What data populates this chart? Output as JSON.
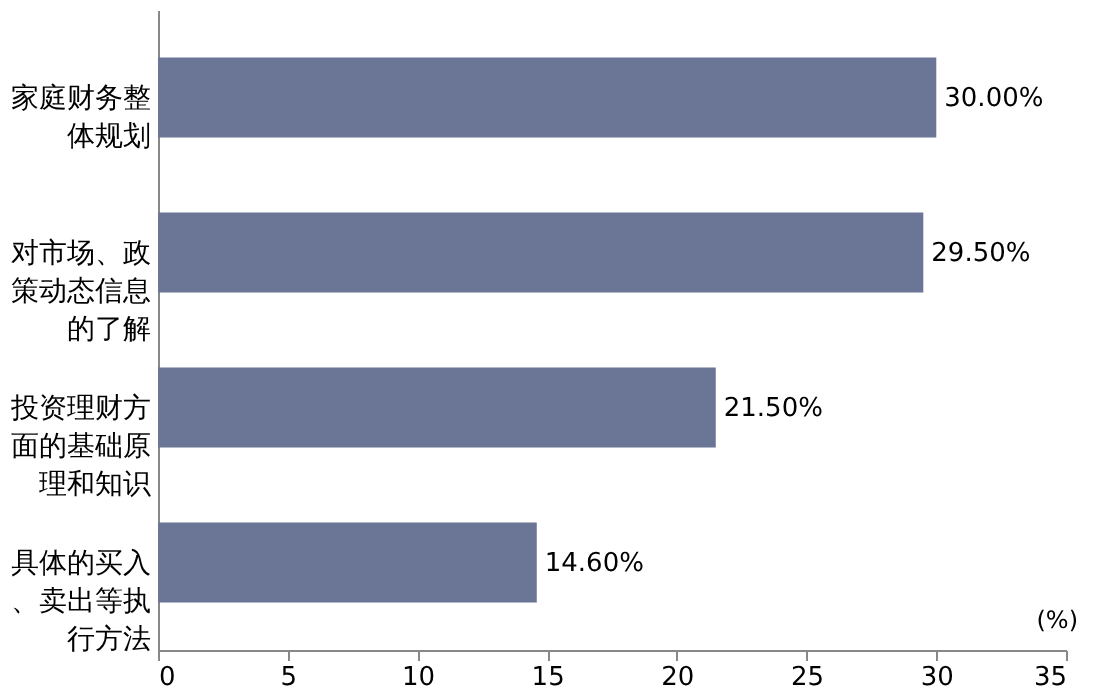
{
  "chart_data": {
    "type": "bar",
    "orientation": "horizontal",
    "categories": [
      "家庭财务整体规划",
      "对市场、政策动态信息的了解",
      "投资理财方面的基础原理和知识",
      "具体的买入、卖出等执行方法"
    ],
    "values": [
      30.0,
      29.5,
      21.5,
      14.6
    ],
    "value_labels": [
      "30.00%",
      "29.50%",
      "21.50%",
      "14.60%"
    ],
    "color": "#6b7596",
    "xlabel": "(%)",
    "xlim": [
      0,
      35
    ],
    "xticks": [
      0,
      5,
      10,
      15,
      20,
      25,
      30,
      35
    ],
    "grid": false
  }
}
